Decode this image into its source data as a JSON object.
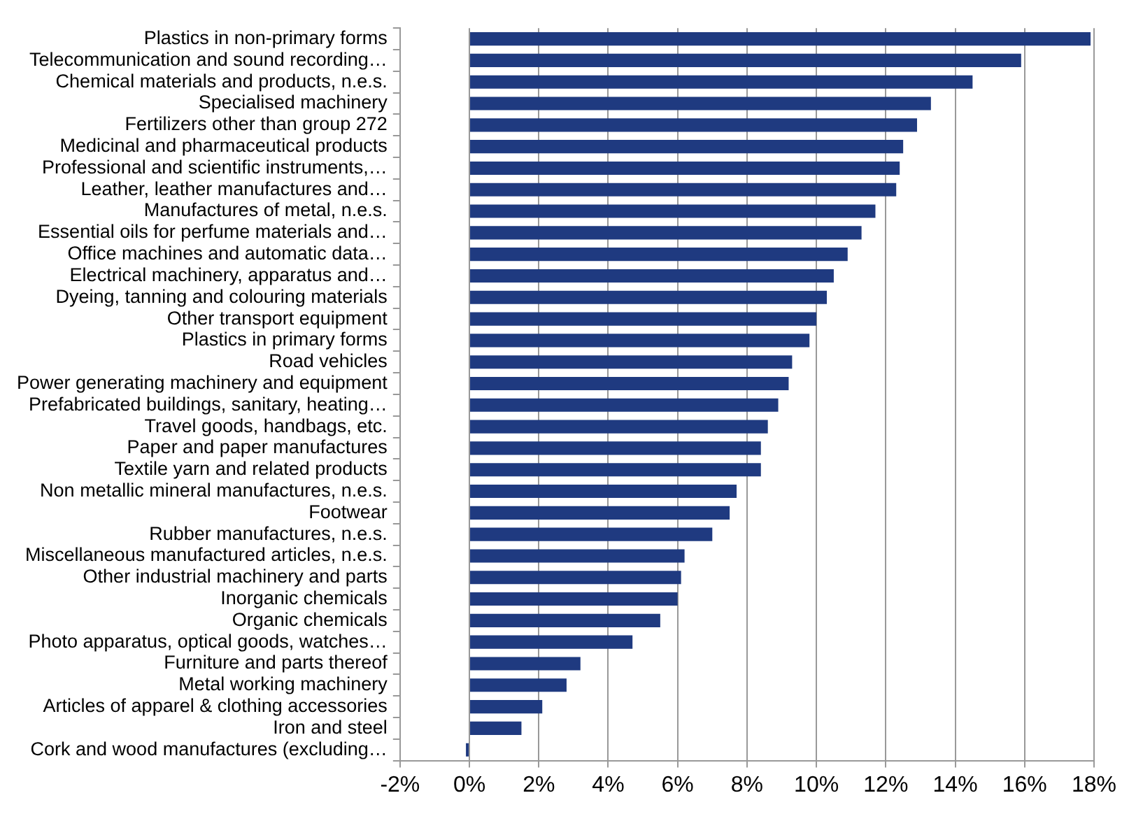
{
  "chart_data": {
    "type": "bar",
    "orientation": "horizontal",
    "categories": [
      "Plastics in non-primary forms",
      "Telecommunication and sound recording…",
      "Chemical materials and products, n.e.s.",
      "Specialised machinery",
      "Fertilizers other than group 272",
      "Medicinal and pharmaceutical products",
      "Professional and scientific instruments,…",
      "Leather, leather manufactures and…",
      "Manufactures of metal, n.e.s.",
      "Essential oils for perfume materials and…",
      "Office machines and automatic data…",
      "Electrical machinery, apparatus and…",
      "Dyeing, tanning and colouring materials",
      "Other transport equipment",
      "Plastics in primary forms",
      "Road vehicles",
      "Power generating machinery and equipment",
      "Prefabricated buildings, sanitary, heating…",
      "Travel goods, handbags, etc.",
      "Paper and paper manufactures",
      "Textile yarn and related products",
      "Non metallic mineral manufactures, n.e.s.",
      "Footwear",
      "Rubber manufactures, n.e.s.",
      "Miscellaneous manufactured articles, n.e.s.",
      "Other industrial machinery and parts",
      "Inorganic chemicals",
      "Organic chemicals",
      "Photo apparatus, optical goods, watches…",
      "Furniture and parts thereof",
      "Metal working machinery",
      "Articles of apparel & clothing accessories",
      "Iron and steel",
      "Cork and wood manufactures (excluding…"
    ],
    "values": [
      17.9,
      15.9,
      14.5,
      13.3,
      12.9,
      12.5,
      12.4,
      12.3,
      11.7,
      11.3,
      10.9,
      10.5,
      10.3,
      10.0,
      9.8,
      9.3,
      9.2,
      8.9,
      8.6,
      8.4,
      8.4,
      7.7,
      7.5,
      7.0,
      6.2,
      6.1,
      6.0,
      5.5,
      4.7,
      3.2,
      2.8,
      2.1,
      1.5,
      -0.1
    ],
    "color": "#1f3a80",
    "xlim": [
      -2,
      18
    ],
    "xticks": [
      {
        "value": -2,
        "label": "-2%"
      },
      {
        "value": 0,
        "label": "0%"
      },
      {
        "value": 2,
        "label": "2%"
      },
      {
        "value": 4,
        "label": "4%"
      },
      {
        "value": 6,
        "label": "6%"
      },
      {
        "value": 8,
        "label": "8%"
      },
      {
        "value": 10,
        "label": "10%"
      },
      {
        "value": 12,
        "label": "12%"
      },
      {
        "value": 14,
        "label": "14%"
      },
      {
        "value": 16,
        "label": "16%"
      },
      {
        "value": 18,
        "label": "18%"
      }
    ],
    "grid": "x",
    "legend": false
  }
}
